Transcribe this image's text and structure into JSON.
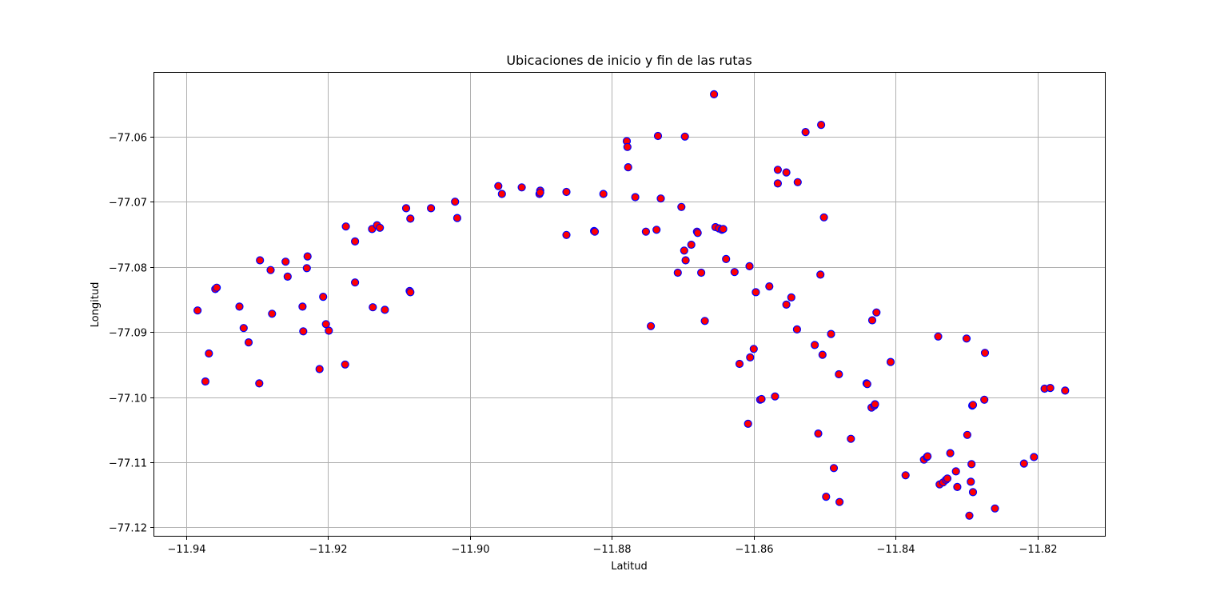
{
  "chart_data": {
    "type": "scatter",
    "title": "Ubicaciones de inicio y fin de las rutas",
    "xlabel": "Latitud",
    "ylabel": "Longitud",
    "xlim": [
      -11.9445,
      -11.8105
    ],
    "ylim": [
      -77.1213,
      -77.0502
    ],
    "xticks": [
      -11.94,
      -11.92,
      -11.9,
      -11.88,
      -11.86,
      -11.84,
      -11.82
    ],
    "xtick_labels": [
      "−11.94",
      "−11.92",
      "−11.90",
      "−11.88",
      "−11.86",
      "−11.84",
      "−11.82"
    ],
    "yticks": [
      -77.06,
      -77.07,
      -77.08,
      -77.09,
      -77.1,
      -77.11,
      -77.12
    ],
    "ytick_labels": [
      "−77.06",
      "−77.07",
      "−77.08",
      "−77.09",
      "−77.10",
      "−77.11",
      "−77.12"
    ],
    "grid": true,
    "marker_face_color": "#ff0000",
    "marker_edge_color": "#0000ff",
    "points": [
      [
        -11.9384,
        -77.0867
      ],
      [
        -11.9373,
        -77.0976
      ],
      [
        -11.9368,
        -77.0933
      ],
      [
        -11.9359,
        -77.0834
      ],
      [
        -11.9357,
        -77.0832
      ],
      [
        -11.9325,
        -77.0861
      ],
      [
        -11.9319,
        -77.0894
      ],
      [
        -11.9312,
        -77.0916
      ],
      [
        -11.9297,
        -77.0979
      ],
      [
        -11.9296,
        -77.079
      ],
      [
        -11.9281,
        -77.0805
      ],
      [
        -11.9279,
        -77.0872
      ],
      [
        -11.926,
        -77.0792
      ],
      [
        -11.9257,
        -77.0815
      ],
      [
        -11.9236,
        -77.0861
      ],
      [
        -11.9235,
        -77.0899
      ],
      [
        -11.923,
        -77.0802
      ],
      [
        -11.9229,
        -77.0784
      ],
      [
        -11.9212,
        -77.0957
      ],
      [
        -11.9207,
        -77.0846
      ],
      [
        -11.9203,
        -77.0888
      ],
      [
        -11.9199,
        -77.0898
      ],
      [
        -11.9176,
        -77.095
      ],
      [
        -11.9175,
        -77.0738
      ],
      [
        -11.9162,
        -77.0761
      ],
      [
        -11.9162,
        -77.0824
      ],
      [
        -11.9138,
        -77.0742
      ],
      [
        -11.9137,
        -77.0862
      ],
      [
        -11.9131,
        -77.0736
      ],
      [
        -11.9127,
        -77.074
      ],
      [
        -11.912,
        -77.0866
      ],
      [
        -11.909,
        -77.071
      ],
      [
        -11.9085,
        -77.0837
      ],
      [
        -11.9084,
        -77.0839
      ],
      [
        -11.9084,
        -77.0726
      ],
      [
        -11.9055,
        -77.071
      ],
      [
        -11.9021,
        -77.07
      ],
      [
        -11.9018,
        -77.0725
      ],
      [
        -11.896,
        -77.0676
      ],
      [
        -11.8955,
        -77.0688
      ],
      [
        -11.8927,
        -77.0678
      ],
      [
        -11.8902,
        -77.0688
      ],
      [
        -11.8901,
        -77.0683
      ],
      [
        -11.8901,
        -77.0686
      ],
      [
        -11.8864,
        -77.0685
      ],
      [
        -11.8864,
        -77.0751
      ],
      [
        -11.8825,
        -77.0745
      ],
      [
        -11.8824,
        -77.0746
      ],
      [
        -11.8812,
        -77.0688
      ],
      [
        -11.8779,
        -77.0607
      ],
      [
        -11.8778,
        -77.0616
      ],
      [
        -11.8777,
        -77.0647
      ],
      [
        -11.8767,
        -77.0693
      ],
      [
        -11.8752,
        -77.0746
      ],
      [
        -11.8745,
        -77.0891
      ],
      [
        -11.8737,
        -77.0743
      ],
      [
        -11.8735,
        -77.0599
      ],
      [
        -11.8731,
        -77.0695
      ],
      [
        -11.8707,
        -77.0809
      ],
      [
        -11.8702,
        -77.0708
      ],
      [
        -11.8698,
        -77.0775
      ],
      [
        -11.8697,
        -77.06
      ],
      [
        -11.8696,
        -77.079
      ],
      [
        -11.8688,
        -77.0766
      ],
      [
        -11.868,
        -77.0746
      ],
      [
        -11.8679,
        -77.0748
      ],
      [
        -11.8674,
        -77.0809
      ],
      [
        -11.8669,
        -77.0883
      ],
      [
        -11.8656,
        -77.0535
      ],
      [
        -11.8654,
        -77.0739
      ],
      [
        -11.8649,
        -77.0741
      ],
      [
        -11.8645,
        -77.0743
      ],
      [
        -11.8643,
        -77.0742
      ],
      [
        -11.8639,
        -77.0788
      ],
      [
        -11.8627,
        -77.0808
      ],
      [
        -11.862,
        -77.0949
      ],
      [
        -11.8608,
        -77.1041
      ],
      [
        -11.8606,
        -77.0799
      ],
      [
        -11.8605,
        -77.0939
      ],
      [
        -11.86,
        -77.0926
      ],
      [
        -11.8597,
        -77.0839
      ],
      [
        -11.8591,
        -77.1004
      ],
      [
        -11.8589,
        -77.1003
      ],
      [
        -11.8578,
        -77.083
      ],
      [
        -11.857,
        -77.0999
      ],
      [
        -11.8566,
        -77.0651
      ],
      [
        -11.8566,
        -77.0672
      ],
      [
        -11.8554,
        -77.0655
      ],
      [
        -11.8554,
        -77.0858
      ],
      [
        -11.8547,
        -77.0847
      ],
      [
        -11.8539,
        -77.0896
      ],
      [
        -11.8538,
        -77.067
      ],
      [
        -11.8527,
        -77.0593
      ],
      [
        -11.8514,
        -77.092
      ],
      [
        -11.8509,
        -77.1056
      ],
      [
        -11.8506,
        -77.0812
      ],
      [
        -11.8505,
        -77.0582
      ],
      [
        -11.8503,
        -77.0935
      ],
      [
        -11.8501,
        -77.0724
      ],
      [
        -11.8498,
        -77.1153
      ],
      [
        -11.8491,
        -77.0903
      ],
      [
        -11.8487,
        -77.1109
      ],
      [
        -11.848,
        -77.0965
      ],
      [
        -11.8479,
        -77.1161
      ],
      [
        -11.8463,
        -77.1064
      ],
      [
        -11.8441,
        -77.0979
      ],
      [
        -11.844,
        -77.098
      ],
      [
        -11.8434,
        -77.1016
      ],
      [
        -11.8433,
        -77.0882
      ],
      [
        -11.843,
        -77.1013
      ],
      [
        -11.8429,
        -77.1011
      ],
      [
        -11.8427,
        -77.087
      ],
      [
        -11.8407,
        -77.0946
      ],
      [
        -11.8386,
        -77.112
      ],
      [
        -11.836,
        -77.1096
      ],
      [
        -11.8356,
        -77.1092
      ],
      [
        -11.8355,
        -77.1091
      ],
      [
        -11.834,
        -77.0907
      ],
      [
        -11.8338,
        -77.1134
      ],
      [
        -11.8333,
        -77.1131
      ],
      [
        -11.8329,
        -77.1127
      ],
      [
        -11.8327,
        -77.1125
      ],
      [
        -11.8323,
        -77.1086
      ],
      [
        -11.8315,
        -77.1114
      ],
      [
        -11.8313,
        -77.1138
      ],
      [
        -11.83,
        -77.091
      ],
      [
        -11.8299,
        -77.1058
      ],
      [
        -11.8296,
        -77.1182
      ],
      [
        -11.8294,
        -77.113
      ],
      [
        -11.8293,
        -77.1103
      ],
      [
        -11.8292,
        -77.1013
      ],
      [
        -11.8291,
        -77.1012
      ],
      [
        -11.8291,
        -77.1146
      ],
      [
        -11.8275,
        -77.1004
      ],
      [
        -11.8274,
        -77.0932
      ],
      [
        -11.826,
        -77.1171
      ],
      [
        -11.8219,
        -77.1102
      ],
      [
        -11.8205,
        -77.1092
      ],
      [
        -11.819,
        -77.0987
      ],
      [
        -11.8182,
        -77.0986
      ],
      [
        -11.8161,
        -77.099
      ]
    ]
  }
}
